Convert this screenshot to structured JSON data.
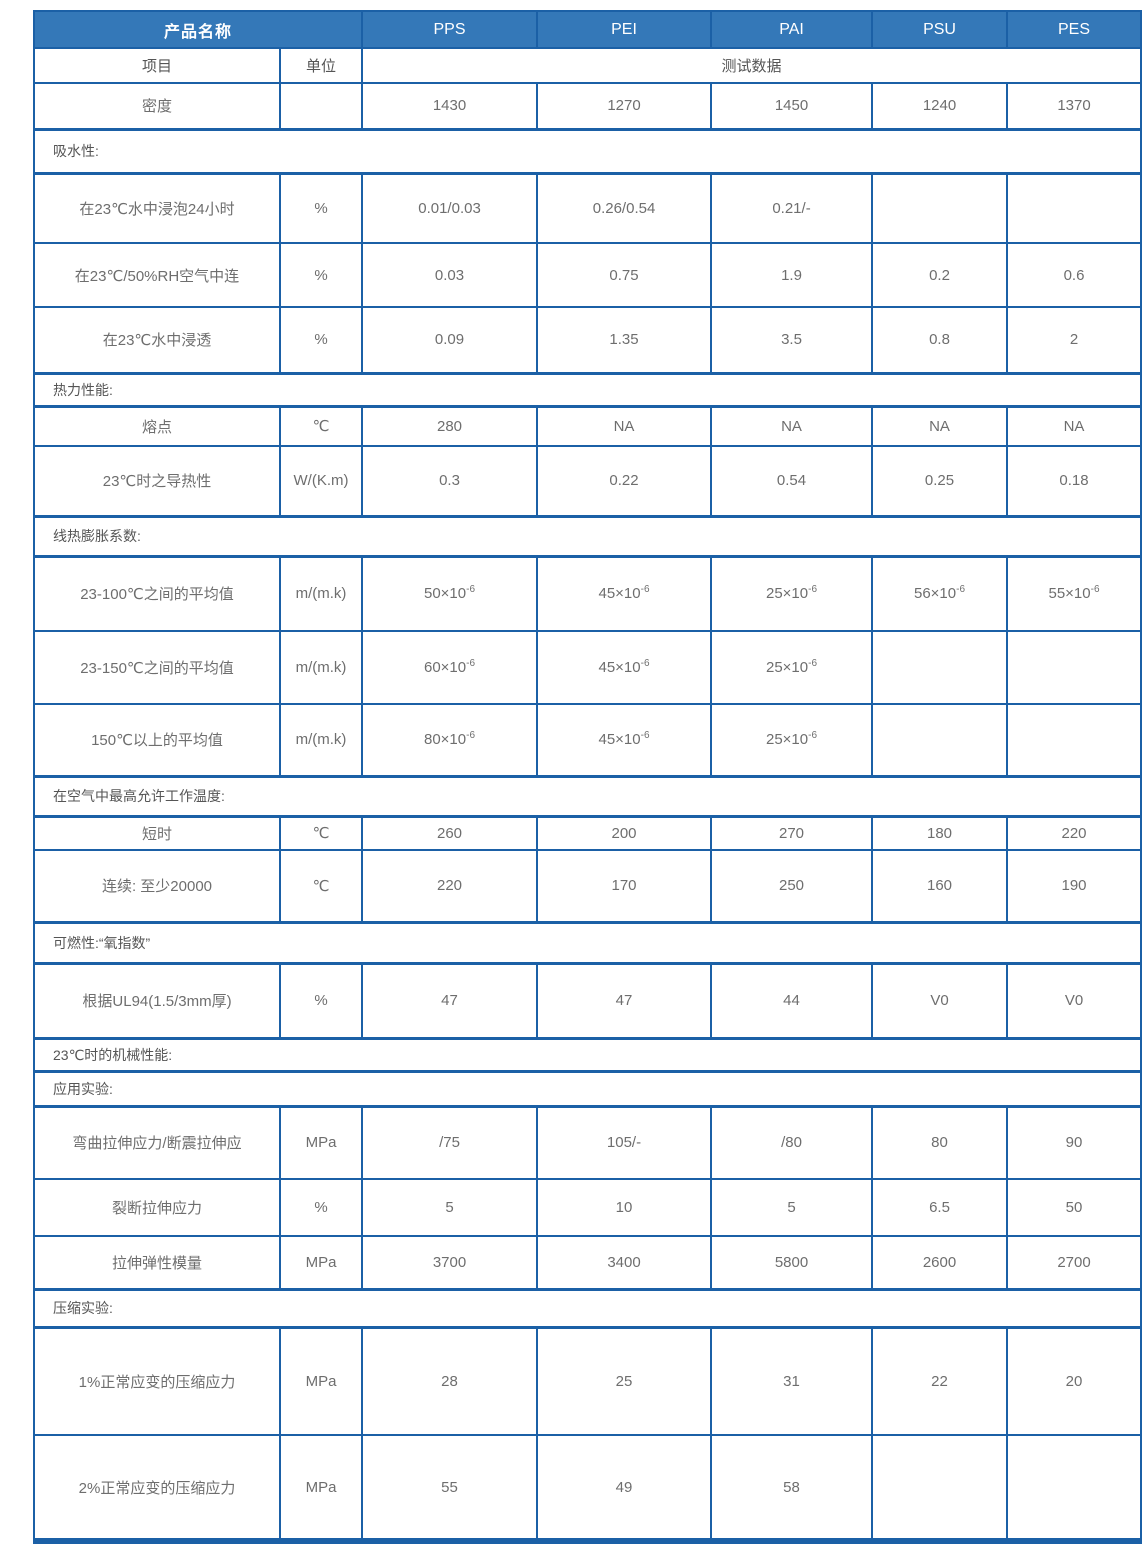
{
  "colors": {
    "header_bg": "#3478b8",
    "header_text": "#ffffff",
    "border": "#1b60a6",
    "cell_text": "#6e6e6e",
    "section_text": "#555555",
    "background": "#ffffff"
  },
  "table": {
    "header_row": {
      "product_label": "产品名称",
      "materials": [
        "PPS",
        "PEI",
        "PAI",
        "PSU",
        "PES"
      ]
    },
    "subheader_row": {
      "item": "项目",
      "unit": "单位",
      "test_data": "测试数据"
    },
    "rows": [
      {
        "type": "data",
        "label": "密度",
        "unit": "",
        "values": [
          "1430",
          "1270",
          "1450",
          "1240",
          "1370"
        ]
      },
      {
        "type": "section",
        "label": "吸水性:"
      },
      {
        "type": "data",
        "label": "在23℃水中浸泡24小时",
        "unit": "%",
        "values": [
          "0.01/0.03",
          "0.26/0.54",
          "0.21/-",
          "",
          ""
        ]
      },
      {
        "type": "data",
        "label": "在23℃/50%RH空气中连",
        "unit": "%",
        "values": [
          "0.03",
          "0.75",
          "1.9",
          "0.2",
          "0.6"
        ]
      },
      {
        "type": "data",
        "label": "在23℃水中浸透",
        "unit": "%",
        "values": [
          "0.09",
          "1.35",
          "3.5",
          "0.8",
          "2"
        ]
      },
      {
        "type": "section",
        "label": "热力性能:"
      },
      {
        "type": "data",
        "label": "熔点",
        "unit": "℃",
        "values": [
          "280",
          "NA",
          "NA",
          "NA",
          "NA"
        ]
      },
      {
        "type": "data",
        "label": "23℃时之导热性",
        "unit": "W/(K.m)",
        "values": [
          "0.3",
          "0.22",
          "0.54",
          "0.25",
          "0.18"
        ]
      },
      {
        "type": "section",
        "label": "线热膨胀系数:"
      },
      {
        "type": "data",
        "label": "23-100℃之间的平均值",
        "unit": "m/(m.k)",
        "values": [
          "50×10^-6",
          "45×10^-6",
          "25×10^-6",
          "56×10^-6",
          "55×10^-6"
        ]
      },
      {
        "type": "data",
        "label": "23-150℃之间的平均值",
        "unit": "m/(m.k)",
        "values": [
          "60×10^-6",
          "45×10^-6",
          "25×10^-6",
          "",
          ""
        ]
      },
      {
        "type": "data",
        "label": "150℃以上的平均值",
        "unit": "m/(m.k)",
        "values": [
          "80×10^-6",
          "45×10^-6",
          "25×10^-6",
          "",
          ""
        ]
      },
      {
        "type": "section",
        "label": "在空气中最高允许工作温度:"
      },
      {
        "type": "data",
        "label": "短时",
        "unit": "℃",
        "values": [
          "260",
          "200",
          "270",
          "180",
          "220"
        ]
      },
      {
        "type": "data",
        "label": "连续: 至少20000",
        "unit": "℃",
        "values": [
          "220",
          "170",
          "250",
          "160",
          "190"
        ]
      },
      {
        "type": "section",
        "label": "可燃性:“氧指数”"
      },
      {
        "type": "data",
        "label": "根据UL94(1.5/3mm厚)",
        "unit": "%",
        "values": [
          "47",
          "47",
          "44",
          "V0",
          "V0"
        ]
      },
      {
        "type": "section",
        "label": "23℃时的机械性能:"
      },
      {
        "type": "section",
        "label": "应用实验:"
      },
      {
        "type": "data",
        "label": "弯曲拉伸应力/断震拉伸应",
        "unit": "MPa",
        "values": [
          "/75",
          "105/-",
          "/80",
          "80",
          "90"
        ]
      },
      {
        "type": "data",
        "label": "裂断拉伸应力",
        "unit": "%",
        "values": [
          "5",
          "10",
          "5",
          "6.5",
          "50"
        ]
      },
      {
        "type": "data",
        "label": "拉伸弹性模量",
        "unit": "MPa",
        "values": [
          "3700",
          "3400",
          "5800",
          "2600",
          "2700"
        ]
      },
      {
        "type": "section",
        "label": "压缩实验:"
      },
      {
        "type": "data",
        "label": "1%正常应变的压缩应力",
        "unit": "MPa",
        "values": [
          "28",
          "25",
          "31",
          "22",
          "20"
        ]
      },
      {
        "type": "data",
        "label": "2%正常应变的压缩应力",
        "unit": "MPa",
        "values": [
          "55",
          "49",
          "58",
          "",
          ""
        ]
      }
    ]
  }
}
